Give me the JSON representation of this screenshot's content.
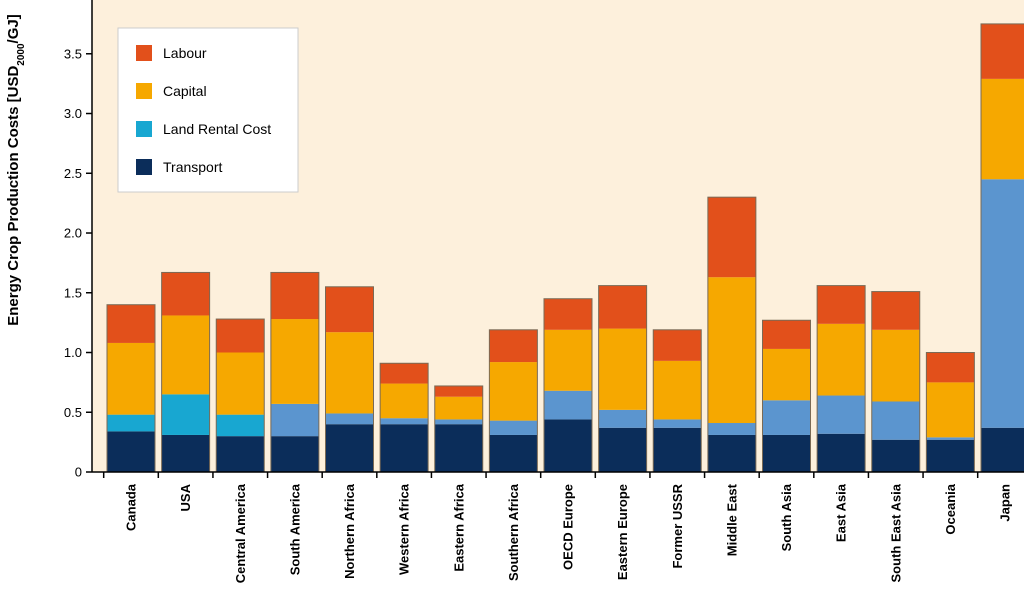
{
  "chart_data": {
    "type": "bar",
    "stacked": true,
    "ylabel": "Energy Crop Production Costs [USD",
    "ylabel_sub": "2000",
    "ylabel_suffix": "/GJ]",
    "ylim": [
      0,
      3.95
    ],
    "yticks": [
      0,
      0.5,
      1.0,
      1.5,
      2.0,
      2.5,
      3.0,
      3.5
    ],
    "ytick_labels": [
      "0",
      "0.5",
      "1.0",
      "1.5",
      "2.0",
      "2.5",
      "3.0",
      "3.5"
    ],
    "grid": false,
    "legend_position": "top-left",
    "categories": [
      "Canada",
      "USA",
      "Central America",
      "South America",
      "Northern Africa",
      "Western Africa",
      "Eastern Africa",
      "Southern Africa",
      "OECD Europe",
      "Eastern Europe",
      "Former USSR",
      "Middle East",
      "South Asia",
      "East Asia",
      "South East Asia",
      "Oceania",
      "Japan"
    ],
    "series": [
      {
        "name": "Transport",
        "color": "#0b2d5a",
        "values": [
          0.34,
          0.31,
          0.3,
          0.3,
          0.4,
          0.4,
          0.4,
          0.31,
          0.44,
          0.37,
          0.37,
          0.31,
          0.31,
          0.32,
          0.27,
          0.27,
          0.37
        ]
      },
      {
        "name": "Land Rental Cost",
        "color": "#18a7d1",
        "values": [
          0.14,
          0.34,
          0.18,
          0.27,
          0.09,
          0.05,
          0.04,
          0.12,
          0.24,
          0.15,
          0.07,
          0.1,
          0.29,
          0.32,
          0.32,
          0.02,
          2.08
        ]
      },
      {
        "name": "Capital",
        "color": "#f6a800",
        "values": [
          0.6,
          0.66,
          0.52,
          0.71,
          0.68,
          0.29,
          0.19,
          0.49,
          0.51,
          0.68,
          0.49,
          1.22,
          0.43,
          0.6,
          0.6,
          0.46,
          0.84
        ]
      },
      {
        "name": "Labour",
        "color": "#e2501b",
        "values": [
          0.32,
          0.36,
          0.28,
          0.39,
          0.38,
          0.17,
          0.09,
          0.27,
          0.26,
          0.36,
          0.26,
          0.67,
          0.24,
          0.32,
          0.32,
          0.25,
          0.46
        ]
      }
    ],
    "land_rental_colors": [
      "#18a7d1",
      "#18a7d1",
      "#18a7d1",
      "#5b95cf",
      "#5b95cf",
      "#5b95cf",
      "#5b95cf",
      "#5b95cf",
      "#5b95cf",
      "#5b95cf",
      "#5b95cf",
      "#5b95cf",
      "#5b95cf",
      "#5b95cf",
      "#5b95cf",
      "#5b95cf",
      "#5b95cf"
    ],
    "legend": [
      {
        "label": "Labour",
        "color": "#e2501b"
      },
      {
        "label": "Capital",
        "color": "#f6a800"
      },
      {
        "label": "Land Rental Cost",
        "color": "#18a7d1"
      },
      {
        "label": "Transport",
        "color": "#0b2d5a"
      }
    ],
    "plot_background": "#fdf0dc"
  }
}
